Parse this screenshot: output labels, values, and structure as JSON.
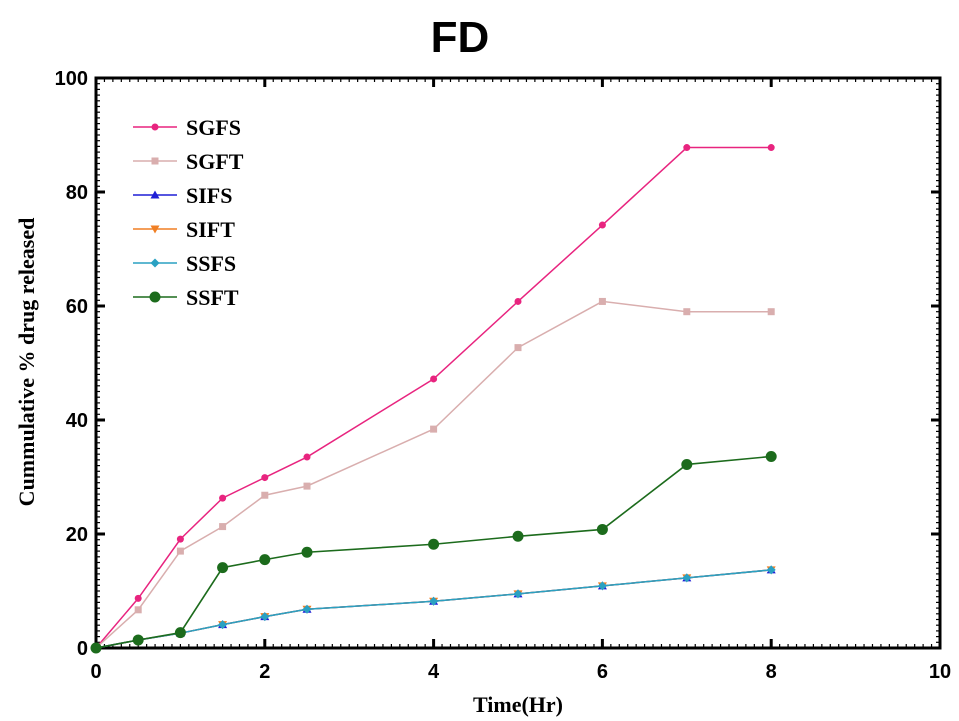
{
  "chart_data": {
    "type": "line",
    "title": "FD",
    "xlabel": "Time(Hr)",
    "ylabel": "Cummulative % drug released",
    "xlim": [
      0,
      10
    ],
    "ylim": [
      0,
      100
    ],
    "x_ticks": [
      "0",
      "2",
      "4",
      "6",
      "8",
      "10"
    ],
    "y_ticks": [
      "0",
      "20",
      "40",
      "60",
      "80",
      "100"
    ],
    "grid": false,
    "legend_position": "top-left",
    "x": [
      0,
      0.5,
      1,
      1.5,
      2,
      2.5,
      4,
      5,
      6,
      7,
      8
    ],
    "series": [
      {
        "name": "SGFS",
        "color": "#e8247f",
        "marker": "circle-small",
        "values": [
          0,
          8.7,
          19.1,
          26.3,
          29.9,
          33.5,
          47.2,
          60.8,
          74.2,
          87.8,
          87.8
        ]
      },
      {
        "name": "SGFT",
        "color": "#d9aeae",
        "marker": "square",
        "values": [
          0,
          6.7,
          17.0,
          21.3,
          26.8,
          28.4,
          38.4,
          52.7,
          60.8,
          59.0,
          59.0
        ]
      },
      {
        "name": "SIFS",
        "color": "#1f1fd6",
        "marker": "triangle-up",
        "values": [
          0,
          1.4,
          2.6,
          4.1,
          5.5,
          6.8,
          8.2,
          9.5,
          10.9,
          12.3,
          13.7
        ]
      },
      {
        "name": "SIFT",
        "color": "#f07f24",
        "marker": "triangle-down",
        "values": [
          0,
          1.4,
          2.6,
          4.1,
          5.5,
          6.8,
          8.2,
          9.5,
          10.9,
          12.3,
          13.7
        ]
      },
      {
        "name": "SSFS",
        "color": "#2aa1c2",
        "marker": "diamond",
        "values": [
          0,
          1.4,
          2.6,
          4.1,
          5.5,
          6.8,
          8.2,
          9.5,
          10.9,
          12.3,
          13.7
        ]
      },
      {
        "name": "SSFT",
        "color": "#1c6b1c",
        "marker": "circle-large",
        "values": [
          0,
          1.4,
          2.7,
          14.1,
          15.5,
          16.8,
          18.2,
          19.6,
          20.8,
          32.2,
          33.6
        ]
      }
    ]
  }
}
